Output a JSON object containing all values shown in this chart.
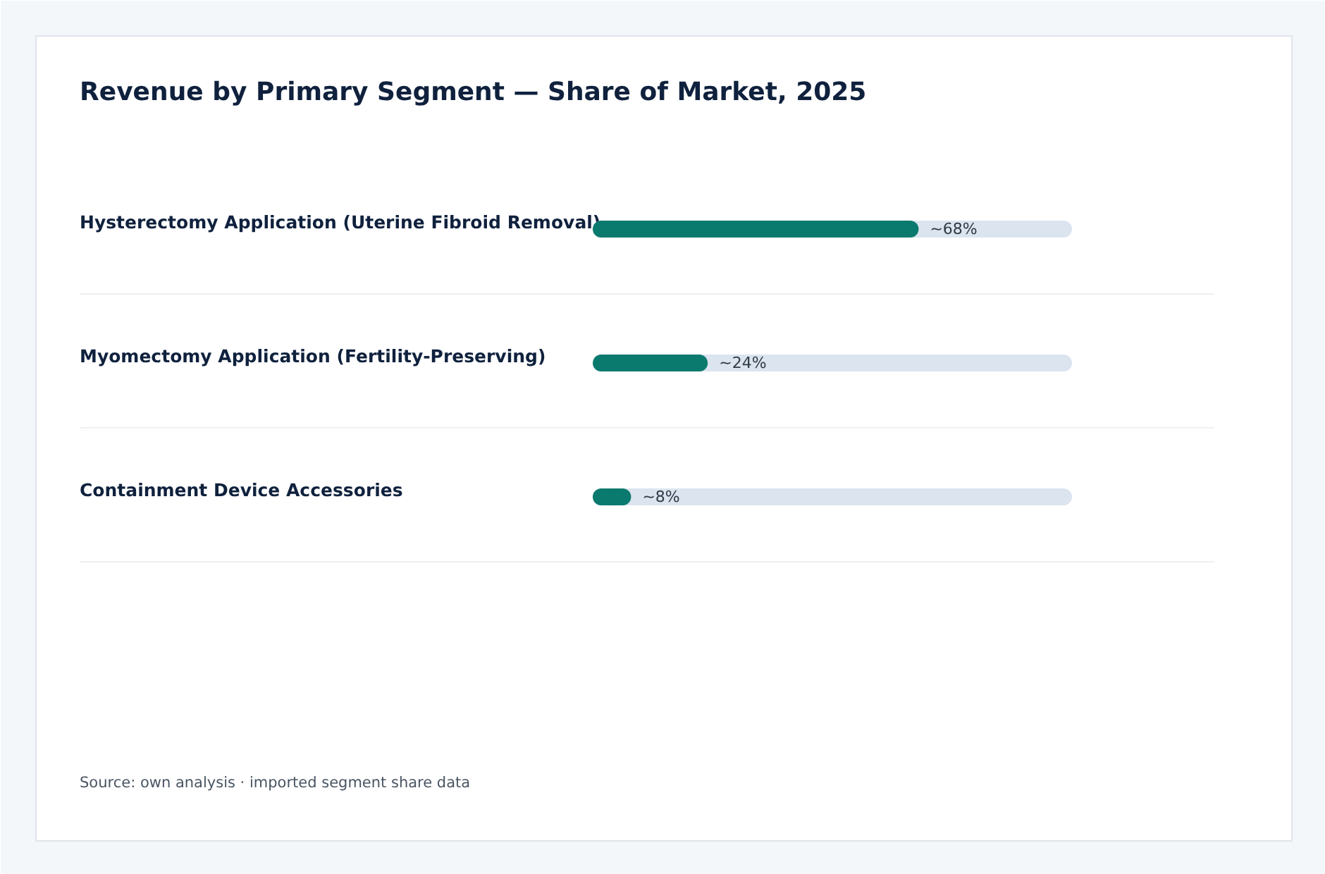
{
  "chart_data": {
    "type": "bar",
    "orientation": "horizontal",
    "title": "Revenue by Primary Segment — Share of Market, 2025",
    "categories": [
      "Hysterectomy Application (Uterine Fibroid Removal)",
      "Myomectomy Application (Fertility-Preserving)",
      "Containment Device Accessories"
    ],
    "values": [
      68,
      24,
      8
    ],
    "color": "#0b7a6e",
    "value_labels": [
      "~68%",
      "~24%",
      "~8%"
    ],
    "xlim": [
      0,
      100
    ],
    "grid": true,
    "annotations": [
      "Source: own analysis · imported segment share data"
    ]
  }
}
